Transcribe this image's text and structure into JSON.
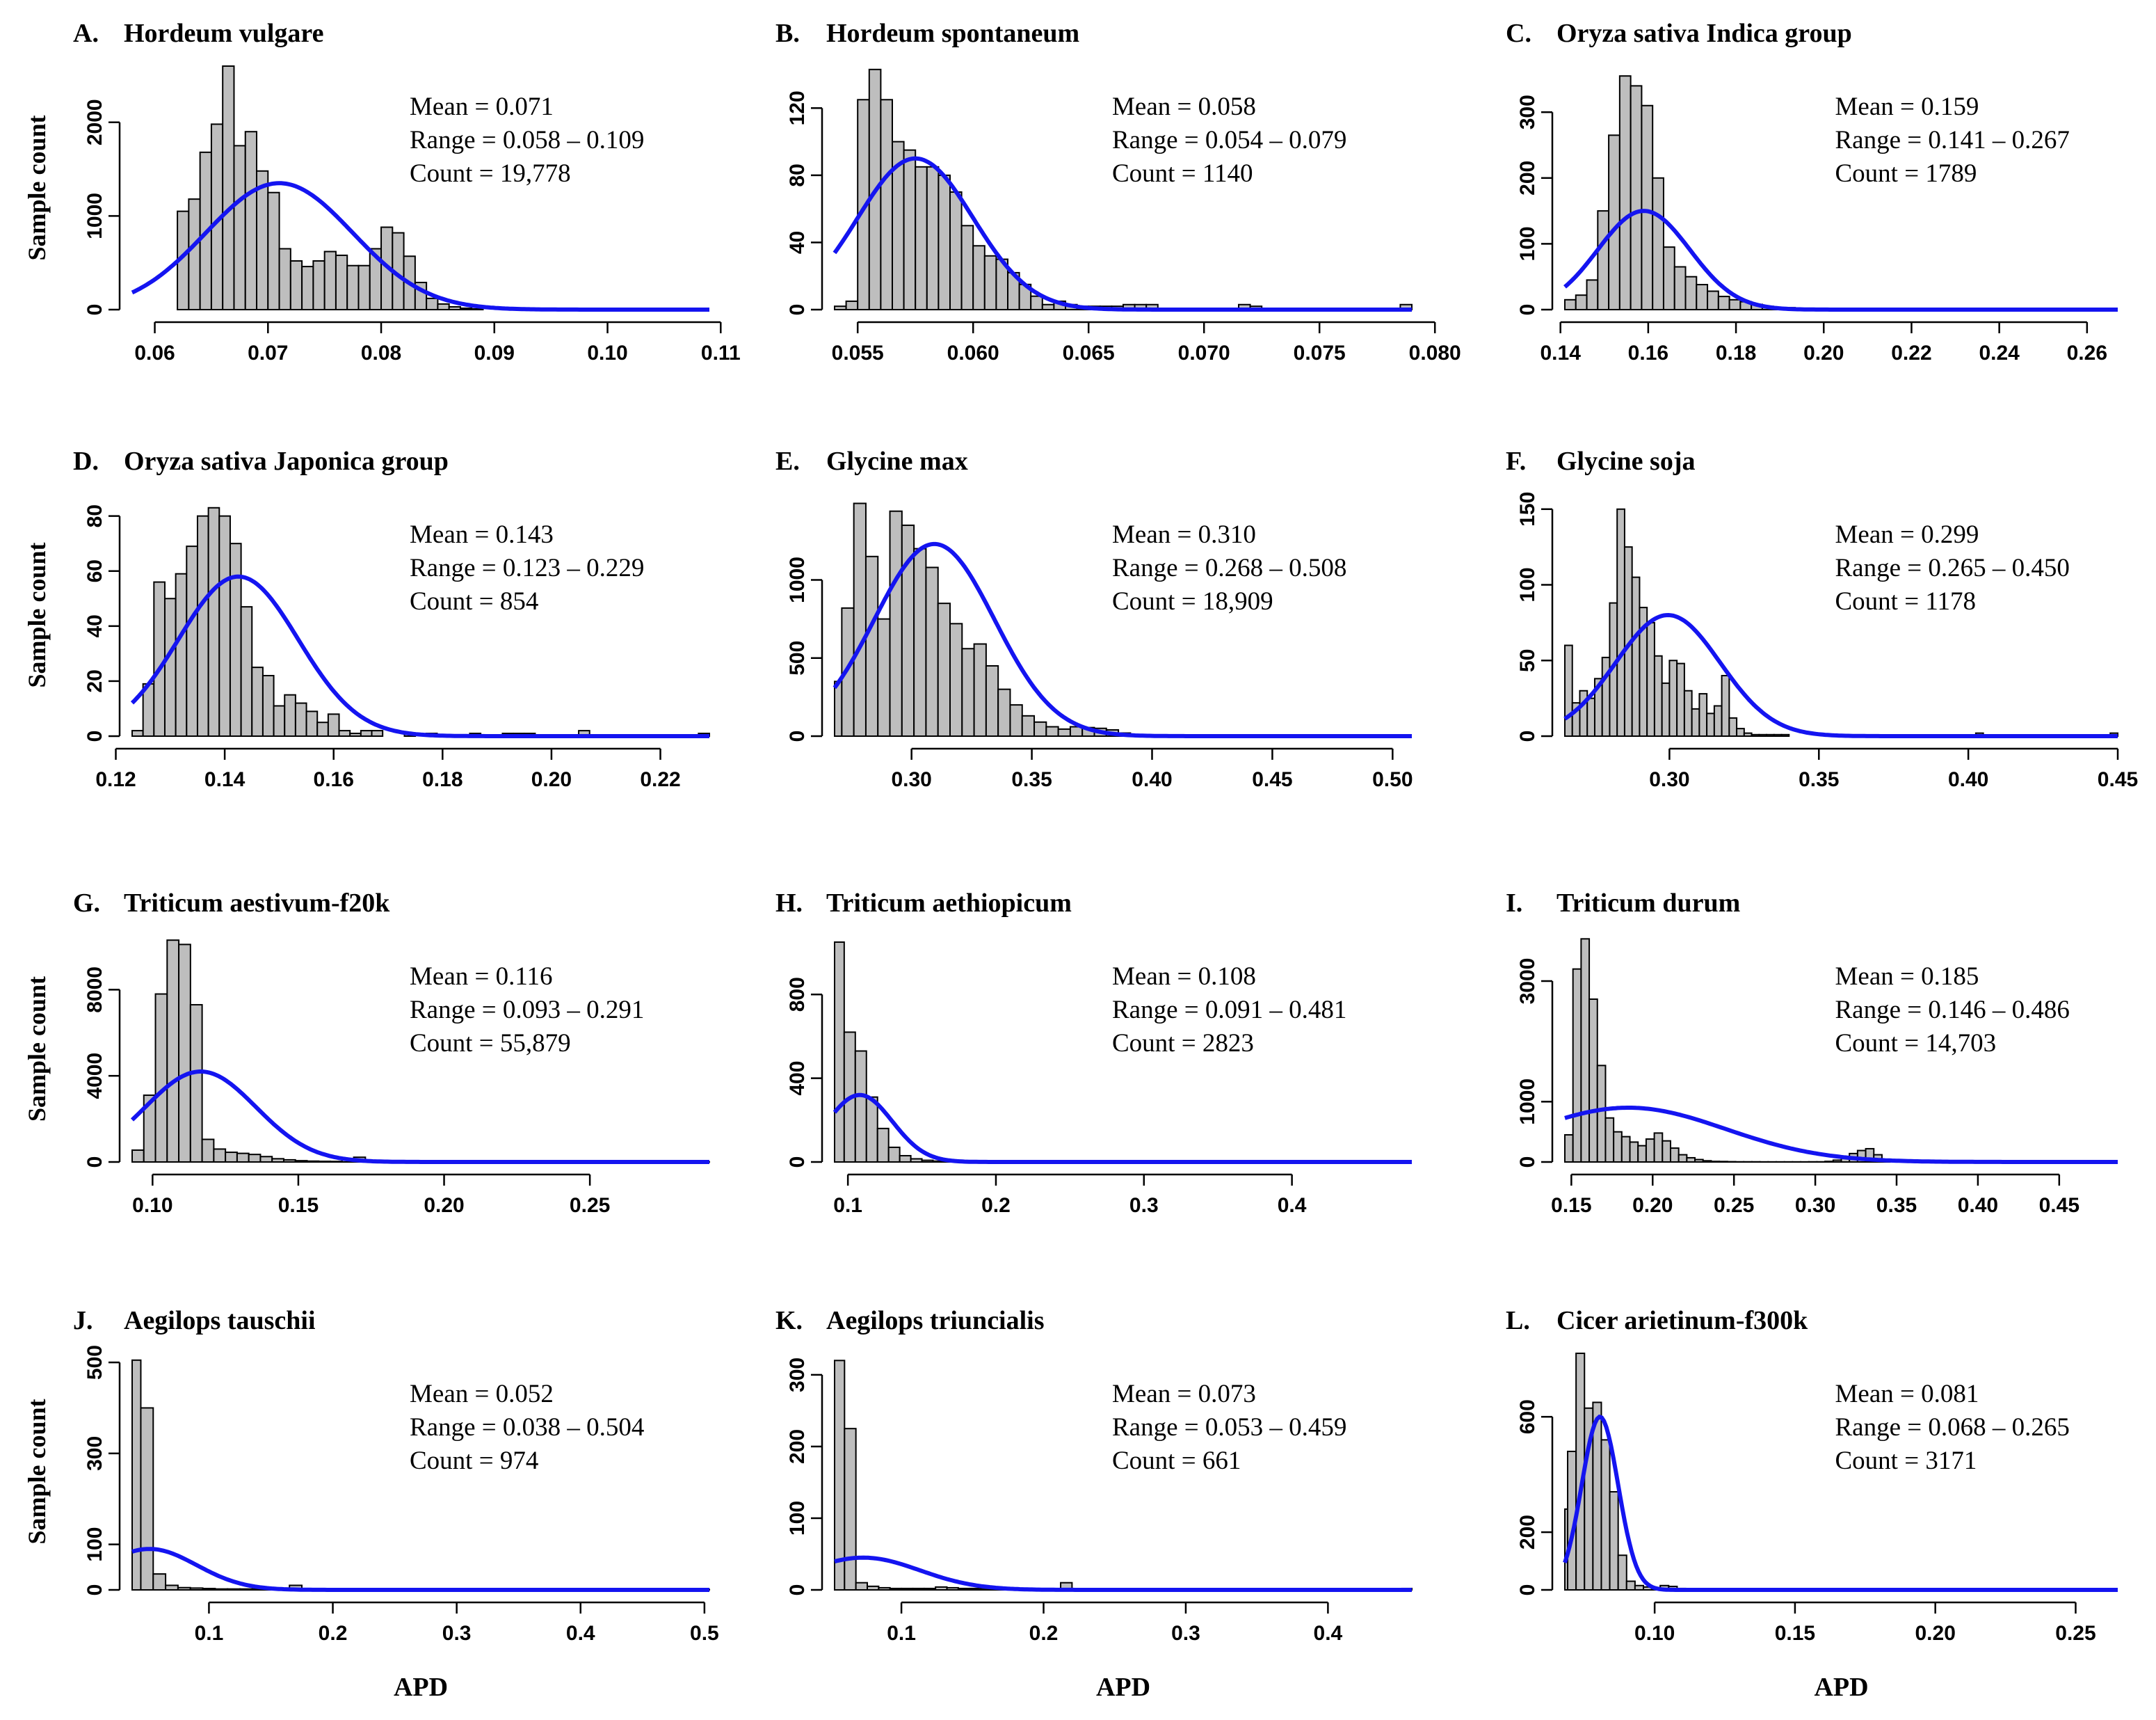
{
  "figure": {
    "y_axis_label": "Sample count",
    "x_axis_label": "APD"
  },
  "chart_data": [
    {
      "type": "histogram",
      "letter": "A.",
      "title": "Hordeum vulgare",
      "mean_label": "Mean = 0.071",
      "range_label": "Range = 0.058 – 0.109",
      "count_label": "Count = 19,778",
      "xlim": [
        0.058,
        0.109
      ],
      "xticks": [
        0.06,
        0.07,
        0.08,
        0.09,
        0.1,
        0.11
      ],
      "xtick_labels": [
        "0.06",
        "0.07",
        "0.08",
        "0.09",
        "0.10",
        "0.11"
      ],
      "ylim": [
        0,
        2600
      ],
      "yticks": [
        0,
        1000,
        2000
      ],
      "ytick_labels": [
        "0",
        "1000",
        "2000"
      ],
      "bin_start": 0.062,
      "bin_width": 0.001,
      "counts": [
        1050,
        1180,
        1680,
        1980,
        2620,
        1750,
        1900,
        1480,
        1250,
        650,
        520,
        460,
        520,
        620,
        580,
        470,
        470,
        650,
        880,
        820,
        570,
        290,
        120,
        60,
        30,
        15,
        8
      ],
      "curve": {
        "mean": 0.071,
        "sd": 0.0065,
        "peak": 1350
      },
      "show_xlabel": false,
      "show_ylabel": true
    },
    {
      "type": "histogram",
      "letter": "B.",
      "title": "Hordeum spontaneum",
      "mean_label": "Mean = 0.058",
      "range_label": "Range = 0.054 – 0.079",
      "count_label": "Count = 1140",
      "xlim": [
        0.054,
        0.079
      ],
      "xticks": [
        0.055,
        0.06,
        0.065,
        0.07,
        0.075,
        0.08
      ],
      "xtick_labels": [
        "0.055",
        "0.060",
        "0.065",
        "0.070",
        "0.075",
        "0.080"
      ],
      "ylim": [
        0,
        145
      ],
      "yticks": [
        0,
        40,
        80,
        120
      ],
      "ytick_labels": [
        "0",
        "40",
        "80",
        "120"
      ],
      "bin_start": 0.054,
      "bin_width": 0.0005,
      "counts": [
        2,
        5,
        125,
        143,
        125,
        100,
        95,
        85,
        85,
        80,
        70,
        50,
        38,
        32,
        30,
        22,
        15,
        8,
        3,
        5,
        3,
        2,
        2,
        2,
        2,
        3,
        3,
        3,
        0,
        0,
        0,
        0,
        0,
        0,
        0,
        3,
        2,
        0,
        0,
        0,
        0,
        0,
        0,
        0,
        0,
        0,
        0,
        0,
        0,
        3
      ],
      "curve": {
        "mean": 0.0575,
        "sd": 0.0025,
        "peak": 90
      },
      "show_xlabel": false,
      "show_ylabel": false
    },
    {
      "type": "histogram",
      "letter": "C.",
      "title": "Oryza sativa Indica group",
      "mean_label": "Mean = 0.159",
      "range_label": "Range = 0.141 – 0.267",
      "count_label": "Count = 1789",
      "xlim": [
        0.141,
        0.267
      ],
      "xticks": [
        0.14,
        0.16,
        0.18,
        0.2,
        0.22,
        0.24,
        0.26
      ],
      "xtick_labels": [
        "0.14",
        "0.16",
        "0.18",
        "0.20",
        "0.22",
        "0.24",
        "0.26"
      ],
      "ylim": [
        0,
        370
      ],
      "yticks": [
        0,
        100,
        200,
        300
      ],
      "ytick_labels": [
        "0",
        "100",
        "200",
        "300"
      ],
      "bin_start": 0.141,
      "bin_width": 0.0025,
      "counts": [
        15,
        22,
        45,
        150,
        265,
        355,
        340,
        310,
        200,
        95,
        65,
        50,
        38,
        28,
        20,
        15,
        12,
        8,
        5,
        3,
        3,
        2,
        2,
        2,
        2,
        1,
        1,
        1,
        1,
        1,
        1,
        1,
        1,
        1,
        0,
        0,
        0,
        0,
        0,
        0,
        0,
        0,
        0,
        0,
        0,
        0,
        0,
        0,
        0,
        0
      ],
      "curve": {
        "mean": 0.159,
        "sd": 0.0105,
        "peak": 150
      },
      "show_xlabel": false,
      "show_ylabel": false
    },
    {
      "type": "histogram",
      "letter": "D.",
      "title": "Oryza sativa Japonica group",
      "mean_label": "Mean = 0.143",
      "range_label": "Range = 0.123 – 0.229",
      "count_label": "Count = 854",
      "xlim": [
        0.123,
        0.229
      ],
      "xticks": [
        0.12,
        0.14,
        0.16,
        0.18,
        0.2,
        0.22
      ],
      "xtick_labels": [
        "0.12",
        "0.14",
        "0.16",
        "0.18",
        "0.20",
        "0.22"
      ],
      "ylim": [
        0,
        88
      ],
      "yticks": [
        0,
        20,
        40,
        60,
        80
      ],
      "ytick_labels": [
        "0",
        "20",
        "40",
        "60",
        "80"
      ],
      "bin_start": 0.123,
      "bin_width": 0.002,
      "counts": [
        2,
        19,
        56,
        50,
        59,
        69,
        80,
        83,
        80,
        70,
        47,
        25,
        22,
        11,
        15,
        12,
        9,
        5,
        8,
        2,
        1,
        2,
        2,
        0,
        0,
        1,
        0,
        1,
        0,
        0,
        0,
        1,
        0,
        0,
        1,
        1,
        1,
        0,
        0,
        0,
        0,
        2,
        0,
        0,
        0,
        0,
        0,
        0,
        0,
        0,
        0,
        0,
        1
      ],
      "curve": {
        "mean": 0.1425,
        "sd": 0.011,
        "peak": 58
      },
      "show_xlabel": false,
      "show_ylabel": true
    },
    {
      "type": "histogram",
      "letter": "E.",
      "title": "Glycine max",
      "mean_label": "Mean = 0.310",
      "range_label": "Range = 0.268 – 0.508",
      "count_label": "Count = 18,909",
      "xlim": [
        0.268,
        0.508
      ],
      "xticks": [
        0.3,
        0.35,
        0.4,
        0.45,
        0.5
      ],
      "xtick_labels": [
        "0.30",
        "0.35",
        "0.40",
        "0.45",
        "0.50"
      ],
      "ylim": [
        0,
        1550
      ],
      "yticks": [
        0,
        500,
        1000
      ],
      "ytick_labels": [
        "0",
        "500",
        "1000"
      ],
      "bin_start": 0.266,
      "bin_width": 0.005,
      "counts": [
        350,
        820,
        1490,
        1150,
        750,
        1440,
        1350,
        1200,
        1080,
        850,
        720,
        560,
        590,
        450,
        300,
        200,
        130,
        90,
        60,
        45,
        60,
        55,
        50,
        40,
        20,
        10,
        5,
        2,
        2,
        2,
        2,
        2,
        1,
        1,
        1,
        1,
        1,
        1,
        1,
        1,
        1,
        1,
        1,
        1,
        1,
        1,
        1,
        1
      ],
      "curve": {
        "mean": 0.3095,
        "sd": 0.025,
        "peak": 1230
      },
      "show_xlabel": false,
      "show_ylabel": false
    },
    {
      "type": "histogram",
      "letter": "F.",
      "title": "Glycine soja",
      "mean_label": "Mean = 0.299",
      "range_label": "Range = 0.265 – 0.450",
      "count_label": "Count = 1178",
      "xlim": [
        0.265,
        0.45
      ],
      "xticks": [
        0.3,
        0.35,
        0.4,
        0.45
      ],
      "xtick_labels": [
        "0.30",
        "0.35",
        "0.40",
        "0.45"
      ],
      "ylim": [
        0,
        160
      ],
      "yticks": [
        0,
        50,
        100,
        150
      ],
      "ytick_labels": [
        "0",
        "50",
        "100",
        "150"
      ],
      "bin_start": 0.265,
      "bin_width": 0.0025,
      "counts": [
        60,
        22,
        30,
        25,
        38,
        52,
        88,
        150,
        125,
        105,
        85,
        75,
        53,
        35,
        50,
        48,
        30,
        18,
        28,
        15,
        20,
        40,
        12,
        5,
        2,
        1,
        1,
        1,
        1,
        1,
        0,
        0,
        0,
        0,
        0,
        0,
        0,
        0,
        0,
        0,
        0,
        0,
        0,
        0,
        0,
        0,
        0,
        0,
        0,
        0,
        0,
        0,
        0,
        0,
        0,
        2,
        0,
        0,
        0,
        0,
        0,
        0,
        0,
        0,
        0,
        0,
        0,
        0,
        0,
        0,
        0,
        0,
        0,
        2
      ],
      "curve": {
        "mean": 0.2995,
        "sd": 0.0175,
        "peak": 80
      },
      "show_xlabel": false,
      "show_ylabel": false
    },
    {
      "type": "histogram",
      "letter": "G.",
      "title": "Triticum aestivum-f20k",
      "mean_label": "Mean = 0.116",
      "range_label": "Range = 0.093 – 0.291",
      "count_label": "Count = 55,879",
      "xlim": [
        0.093,
        0.291
      ],
      "xticks": [
        0.1,
        0.15,
        0.2,
        0.25
      ],
      "xtick_labels": [
        "0.10",
        "0.15",
        "0.20",
        "0.25"
      ],
      "ylim": [
        0,
        10500
      ],
      "yticks": [
        0,
        4000,
        8000
      ],
      "ytick_labels": [
        "0",
        "4000",
        "8000"
      ],
      "bin_start": 0.093,
      "bin_width": 0.004,
      "counts": [
        550,
        3100,
        7800,
        10300,
        10100,
        7300,
        1050,
        600,
        450,
        400,
        350,
        250,
        150,
        100,
        60,
        40,
        30,
        25,
        150,
        220,
        50,
        20,
        10,
        5,
        3,
        2,
        2,
        3,
        2,
        1,
        1,
        1,
        1,
        1,
        1,
        1,
        1,
        1,
        1,
        1,
        1,
        1,
        1,
        1,
        1,
        1,
        1,
        1,
        1,
        1
      ],
      "curve": {
        "mean": 0.1165,
        "sd": 0.019,
        "peak": 4200
      },
      "show_xlabel": false,
      "show_ylabel": true
    },
    {
      "type": "histogram",
      "letter": "H.",
      "title": "Triticum aethiopicum",
      "mean_label": "Mean = 0.108",
      "range_label": "Range = 0.091 – 0.481",
      "count_label": "Count = 2823",
      "xlim": [
        0.091,
        0.481
      ],
      "xticks": [
        0.1,
        0.2,
        0.3,
        0.4
      ],
      "xtick_labels": [
        "0.1",
        "0.2",
        "0.3",
        "0.4"
      ],
      "ylim": [
        0,
        1080
      ],
      "yticks": [
        0,
        400,
        800
      ],
      "ytick_labels": [
        "0",
        "400",
        "800"
      ],
      "bin_start": 0.09,
      "bin_width": 0.0075,
      "counts": [
        1050,
        620,
        530,
        310,
        160,
        70,
        30,
        15,
        8,
        4,
        2,
        2,
        1,
        1,
        1,
        1,
        1,
        1,
        1,
        1,
        1,
        1,
        1,
        1,
        1,
        1,
        1,
        1,
        1,
        1,
        1,
        1,
        1,
        1,
        1,
        1,
        1,
        1,
        1,
        1,
        1,
        1,
        1,
        1,
        1,
        1,
        1,
        1,
        1,
        1,
        1,
        1
      ],
      "curve": {
        "mean": 0.108,
        "sd": 0.022,
        "peak": 320
      },
      "show_xlabel": false,
      "show_ylabel": false
    },
    {
      "type": "histogram",
      "letter": "I.",
      "title": "Triticum durum",
      "mean_label": "Mean = 0.185",
      "range_label": "Range = 0.146 – 0.486",
      "count_label": "Count = 14,703",
      "xlim": [
        0.146,
        0.486
      ],
      "xticks": [
        0.15,
        0.2,
        0.25,
        0.3,
        0.35,
        0.4,
        0.45
      ],
      "xtick_labels": [
        "0.15",
        "0.20",
        "0.25",
        "0.30",
        "0.35",
        "0.40",
        "0.45"
      ],
      "ylim": [
        0,
        3750
      ],
      "yticks": [
        0,
        1000,
        3000
      ],
      "ytick_labels": [
        "0",
        "1000",
        "3000"
      ],
      "bin_start": 0.146,
      "bin_width": 0.005,
      "counts": [
        450,
        3200,
        3700,
        2700,
        1600,
        730,
        500,
        420,
        330,
        270,
        380,
        480,
        350,
        230,
        120,
        70,
        40,
        20,
        10,
        8,
        5,
        3,
        3,
        3,
        2,
        2,
        2,
        2,
        2,
        2,
        3,
        3,
        10,
        30,
        60,
        140,
        190,
        220,
        120,
        40
      ],
      "curve": {
        "mean": 0.185,
        "sd": 0.06,
        "peak": 900
      },
      "show_xlabel": false,
      "show_ylabel": false
    },
    {
      "type": "histogram",
      "letter": "J.",
      "title": "Aegilops tauschii",
      "mean_label": "Mean = 0.052",
      "range_label": "Range = 0.038 – 0.504",
      "count_label": "Count = 974",
      "xlim": [
        0.038,
        0.504
      ],
      "xticks": [
        0.1,
        0.2,
        0.3,
        0.4,
        0.5
      ],
      "xtick_labels": [
        "0.1",
        "0.2",
        "0.3",
        "0.4",
        "0.5"
      ],
      "ylim": [
        0,
        520
      ],
      "yticks": [
        0,
        100,
        300,
        500
      ],
      "ytick_labels": [
        "0",
        "100",
        "300",
        "500"
      ],
      "bin_start": 0.035,
      "bin_width": 0.01,
      "counts": [
        505,
        400,
        35,
        10,
        5,
        4,
        3,
        2,
        2,
        2,
        2,
        2,
        2,
        10,
        2,
        1,
        1,
        1,
        1,
        1,
        1,
        1,
        1,
        1,
        1,
        1,
        1,
        1,
        1,
        1,
        1,
        1,
        1,
        1,
        1,
        1,
        1,
        1,
        1,
        1,
        1,
        1,
        1,
        1,
        1,
        1,
        1
      ],
      "curve": {
        "mean": 0.052,
        "sd": 0.038,
        "peak": 90
      },
      "show_xlabel": true,
      "show_ylabel": true
    },
    {
      "type": "histogram",
      "letter": "K.",
      "title": "Aegilops triuncialis",
      "mean_label": "Mean = 0.073",
      "range_label": "Range = 0.053 – 0.459",
      "count_label": "Count = 661",
      "xlim": [
        0.053,
        0.459
      ],
      "xticks": [
        0.1,
        0.2,
        0.3,
        0.4
      ],
      "xtick_labels": [
        "0.1",
        "0.2",
        "0.3",
        "0.4"
      ],
      "ylim": [
        0,
        330
      ],
      "yticks": [
        0,
        100,
        200,
        300
      ],
      "ytick_labels": [
        "0",
        "100",
        "200",
        "300"
      ],
      "bin_start": 0.052,
      "bin_width": 0.008,
      "counts": [
        320,
        225,
        10,
        5,
        3,
        2,
        2,
        2,
        2,
        4,
        3,
        2,
        2,
        2,
        2,
        2,
        1,
        1,
        1,
        1,
        10,
        1,
        1,
        1,
        1,
        1,
        1,
        1,
        1,
        1,
        1,
        1,
        1,
        1,
        1,
        1,
        1,
        1,
        1,
        1,
        1,
        1,
        1,
        1,
        1,
        1,
        1,
        1,
        1,
        1,
        2
      ],
      "curve": {
        "mean": 0.073,
        "sd": 0.04,
        "peak": 45
      },
      "show_xlabel": true,
      "show_ylabel": false
    },
    {
      "type": "histogram",
      "letter": "L.",
      "title": "Cicer arietinum-f300k",
      "mean_label": "Mean = 0.081",
      "range_label": "Range = 0.068 – 0.265",
      "count_label": "Count = 3171",
      "xlim": [
        0.068,
        0.265
      ],
      "xticks": [
        0.1,
        0.15,
        0.2,
        0.25
      ],
      "xtick_labels": [
        "0.10",
        "0.15",
        "0.20",
        "0.25"
      ],
      "ylim": [
        0,
        820
      ],
      "yticks": [
        0,
        200,
        600
      ],
      "ytick_labels": [
        "0",
        "200",
        "600"
      ],
      "bin_start": 0.066,
      "bin_width": 0.003,
      "counts": [
        280,
        480,
        820,
        630,
        650,
        520,
        340,
        120,
        30,
        15,
        10,
        8,
        15,
        12,
        5,
        3,
        2,
        2,
        1,
        1,
        1,
        1,
        1,
        1,
        1,
        1,
        1,
        1,
        1,
        1,
        1,
        1,
        1,
        1,
        1,
        1,
        1,
        1,
        1,
        1,
        1,
        1,
        1,
        1,
        1,
        1,
        1,
        1,
        1,
        1,
        1,
        1,
        1,
        1,
        1,
        1,
        1,
        1,
        1,
        1,
        1,
        1,
        1,
        1,
        1,
        1
      ],
      "curve": {
        "mean": 0.0805,
        "sd": 0.0065,
        "peak": 600
      },
      "show_xlabel": true,
      "show_ylabel": false
    }
  ]
}
